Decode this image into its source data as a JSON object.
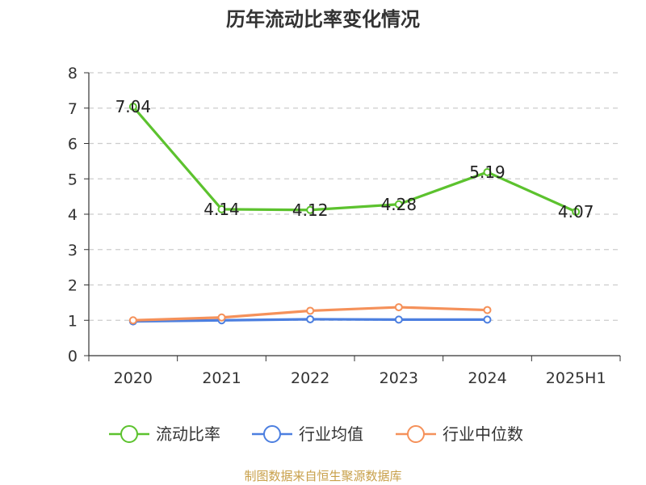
{
  "chart_data": {
    "type": "line",
    "title": "历年流动比率变化情况",
    "categories": [
      "2020",
      "2021",
      "2022",
      "2023",
      "2024",
      "2025H1"
    ],
    "yticks": [
      "0",
      "1",
      "2",
      "3",
      "4",
      "5",
      "6",
      "7",
      "8"
    ],
    "ylim": [
      0,
      8
    ],
    "grid": true,
    "legend_position": "bottom",
    "series": [
      {
        "name": "流动比率",
        "color": "#5cc22e",
        "values": [
          7.04,
          4.14,
          4.12,
          4.28,
          5.19,
          4.07
        ],
        "labels": [
          "7.04",
          "4.14",
          "4.12",
          "4.28",
          "5.19",
          "4.07"
        ],
        "show_labels": true
      },
      {
        "name": "行业均值",
        "color": "#4c7fe0",
        "values": [
          0.97,
          1.0,
          1.03,
          1.02,
          1.02,
          null
        ],
        "show_labels": false
      },
      {
        "name": "行业中位数",
        "color": "#f5915a",
        "values": [
          1.0,
          1.08,
          1.27,
          1.37,
          1.29,
          null
        ],
        "show_labels": false
      }
    ]
  },
  "footer": {
    "source": "制图数据来自恒生聚源数据库"
  }
}
